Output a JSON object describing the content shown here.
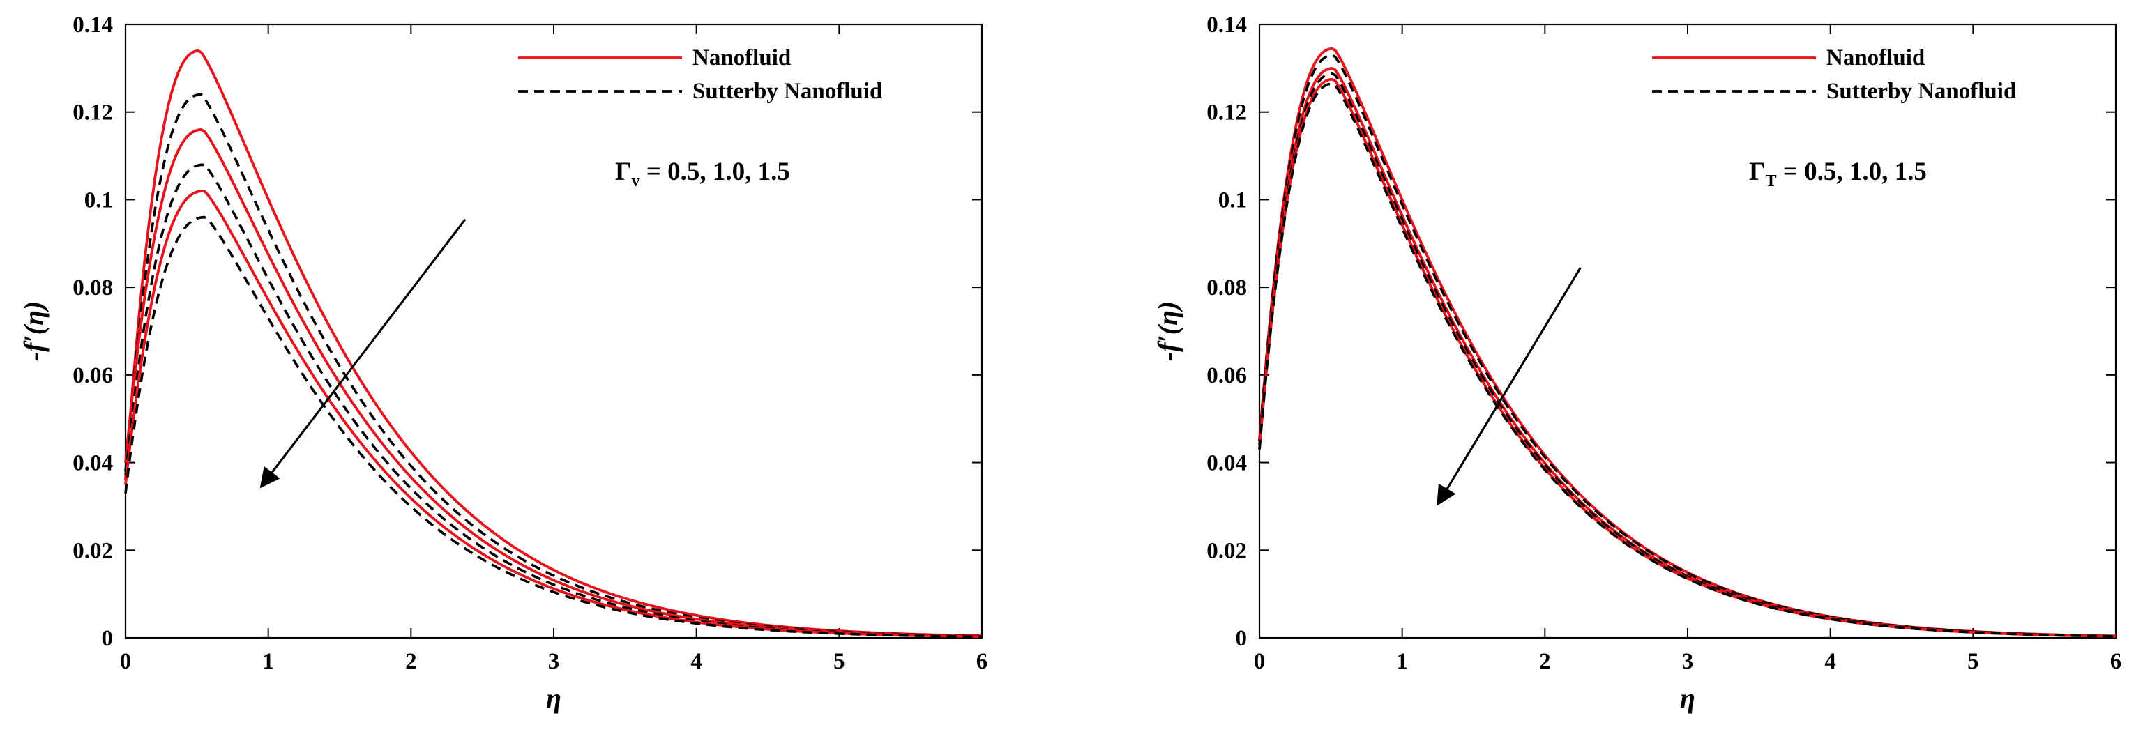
{
  "chart_data": [
    {
      "type": "line",
      "panel": "left",
      "title": "",
      "xlabel": "η",
      "ylabel": "-f′(η)",
      "xlim": [
        0,
        6
      ],
      "ylim": [
        0,
        0.14
      ],
      "x_ticks": [
        "0",
        "1",
        "2",
        "3",
        "4",
        "5",
        "6"
      ],
      "y_ticks": [
        "0",
        "0.02",
        "0.04",
        "0.06",
        "0.08",
        "0.1",
        "0.12",
        "0.14"
      ],
      "legend": {
        "position": "top-right",
        "entries": [
          "Nanofluid",
          "Sutterby Nanofluid"
        ]
      },
      "annotation": {
        "symbol": "Γ",
        "subscript": "v",
        "text": " = 0.5, 1.0, 1.5"
      },
      "arrow": {
        "from": [
          2.38,
          0.0955
        ],
        "to": [
          0.95,
          0.0345
        ]
      },
      "series": [
        {
          "name": "Nanofluid",
          "style": "solid",
          "color": "#e8131b",
          "f0": 0.036,
          "peak": 0.134,
          "xpeak": 0.52,
          "decay": 1.32
        },
        {
          "name": "Sutterby Nanofluid",
          "style": "dashed",
          "color": "#000000",
          "f0": 0.038,
          "peak": 0.124,
          "xpeak": 0.53,
          "decay": 1.31
        },
        {
          "name": "Nanofluid",
          "style": "solid",
          "color": "#e8131b",
          "f0": 0.04,
          "peak": 0.116,
          "xpeak": 0.54,
          "decay": 1.3
        },
        {
          "name": "Sutterby Nanofluid",
          "style": "dashed",
          "color": "#000000",
          "f0": 0.037,
          "peak": 0.108,
          "xpeak": 0.55,
          "decay": 1.29
        },
        {
          "name": "Nanofluid",
          "style": "solid",
          "color": "#e8131b",
          "f0": 0.035,
          "peak": 0.102,
          "xpeak": 0.55,
          "decay": 1.28
        },
        {
          "name": "Sutterby Nanofluid",
          "style": "dashed",
          "color": "#000000",
          "f0": 0.033,
          "peak": 0.096,
          "xpeak": 0.56,
          "decay": 1.27
        }
      ]
    },
    {
      "type": "line",
      "panel": "right",
      "title": "",
      "xlabel": "η",
      "ylabel": "-f′(η)",
      "xlim": [
        0,
        6
      ],
      "ylim": [
        0,
        0.14
      ],
      "x_ticks": [
        "0",
        "1",
        "2",
        "3",
        "4",
        "5",
        "6"
      ],
      "y_ticks": [
        "0",
        "0.02",
        "0.04",
        "0.06",
        "0.08",
        "0.1",
        "0.12",
        "0.14"
      ],
      "legend": {
        "position": "top-right",
        "entries": [
          "Nanofluid",
          "Sutterby Nanofluid"
        ]
      },
      "annotation": {
        "symbol": "Γ",
        "subscript": "T",
        "text": " = 0.5, 1.0, 1.5"
      },
      "arrow": {
        "from": [
          2.25,
          0.0845
        ],
        "to": [
          1.25,
          0.0305
        ]
      },
      "series": [
        {
          "name": "Nanofluid",
          "style": "solid",
          "color": "#e8131b",
          "f0": 0.045,
          "peak": 0.1345,
          "xpeak": 0.52,
          "decay": 1.3
        },
        {
          "name": "Sutterby Nanofluid",
          "style": "dashed",
          "color": "#000000",
          "f0": 0.045,
          "peak": 0.133,
          "xpeak": 0.52,
          "decay": 1.3
        },
        {
          "name": "Nanofluid",
          "style": "solid",
          "color": "#e8131b",
          "f0": 0.044,
          "peak": 0.13,
          "xpeak": 0.52,
          "decay": 1.29
        },
        {
          "name": "Sutterby Nanofluid",
          "style": "dashed",
          "color": "#000000",
          "f0": 0.044,
          "peak": 0.1288,
          "xpeak": 0.52,
          "decay": 1.29
        },
        {
          "name": "Nanofluid",
          "style": "solid",
          "color": "#e8131b",
          "f0": 0.043,
          "peak": 0.1275,
          "xpeak": 0.52,
          "decay": 1.28
        },
        {
          "name": "Sutterby Nanofluid",
          "style": "dashed",
          "color": "#000000",
          "f0": 0.043,
          "peak": 0.1265,
          "xpeak": 0.52,
          "decay": 1.28
        }
      ]
    }
  ]
}
